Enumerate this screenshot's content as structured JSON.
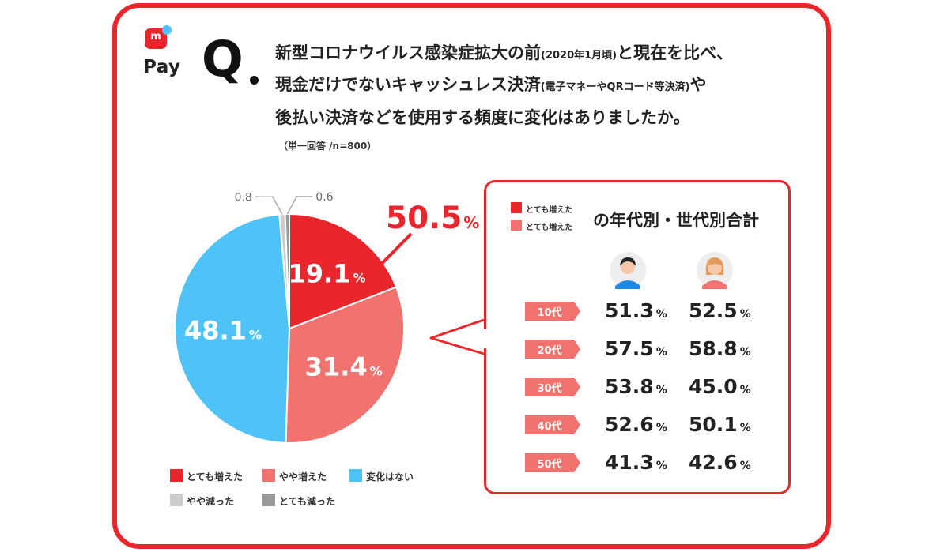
{
  "brand": {
    "name": "Pay",
    "mark": "m"
  },
  "question": {
    "mark": "Q",
    "line1_main": "新型コロナウイルス感染症拡大の前",
    "line1_small": "(2020年1月頃)",
    "line1_tail": "と現在を比べ、",
    "line2_main": "現金だけでないキャッシュレス決済",
    "line2_small": "(電子マネーやQRコード等決済)",
    "line2_tail": "や",
    "line3": "後払い決済などを使用する頻度に変化はありましたか。",
    "note": "（単一回答 /n=800）"
  },
  "colors": {
    "accent": "#e8262b",
    "greatly_increased": "#e8262b",
    "somewhat_increased": "#f2726f",
    "no_change": "#4fc3f7",
    "somewhat_decreased": "#cccccc",
    "greatly_decreased": "#999999"
  },
  "chart_data": [
    {
      "type": "pie",
      "unit": "%",
      "slices": [
        {
          "name": "とても増えた",
          "value": 19.1,
          "label": "19.1",
          "color": "#e8262b"
        },
        {
          "name": "やや増えた",
          "value": 31.4,
          "label": "31.4",
          "color": "#f2726f"
        },
        {
          "name": "変化はない",
          "value": 48.1,
          "label": "48.1",
          "color": "#4fc3f7"
        },
        {
          "name": "やや減った",
          "value": 0.8,
          "label": "0.8",
          "color": "#cccccc"
        },
        {
          "name": "とても減った",
          "value": 0.6,
          "label": "0.6",
          "color": "#999999"
        }
      ],
      "callout": {
        "value": "50.5",
        "unit": "%"
      },
      "legend": [
        "とても増えた",
        "やや増えた",
        "変化はない",
        "やや減った",
        "とても減った"
      ]
    },
    {
      "type": "table",
      "legend_labels": [
        "とても増えた",
        "とても増えた"
      ],
      "title": "の年代別・世代別合計",
      "columns": [
        "male",
        "female"
      ],
      "unit": "%",
      "rows": [
        {
          "age": "10代",
          "male": "51.3",
          "female": "52.5"
        },
        {
          "age": "20代",
          "male": "57.5",
          "female": "58.8"
        },
        {
          "age": "30代",
          "male": "53.8",
          "female": "45.0"
        },
        {
          "age": "40代",
          "male": "52.6",
          "female": "50.1"
        },
        {
          "age": "50代",
          "male": "41.3",
          "female": "42.6"
        }
      ]
    }
  ]
}
